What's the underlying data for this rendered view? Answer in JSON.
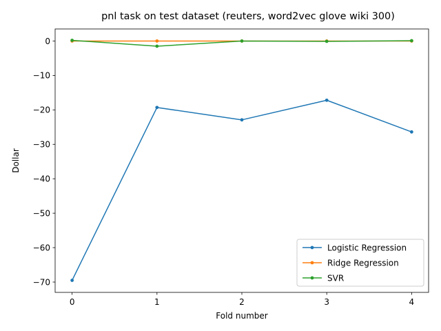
{
  "chart_data": {
    "type": "line",
    "title": "pnl task on test dataset (reuters, word2vec glove wiki 300)",
    "xlabel": "Fold number",
    "ylabel": "Dollar",
    "x": [
      0,
      1,
      2,
      3,
      4
    ],
    "xlim": [
      -0.2,
      4.2
    ],
    "ylim": [
      -73,
      3.5
    ],
    "xticks": [
      0,
      1,
      2,
      3,
      4
    ],
    "yticks": [
      0,
      -10,
      -20,
      -30,
      -40,
      -50,
      -60,
      -70
    ],
    "ytick_labels": [
      "0",
      "−10",
      "−20",
      "−30",
      "−40",
      "−50",
      "−60",
      "−70"
    ],
    "grid": false,
    "legend_position": "lower-right",
    "series": [
      {
        "name": "Logistic Regression",
        "color": "#1f77b4",
        "values": [
          -69.5,
          -19.3,
          -22.9,
          -17.2,
          -26.4
        ]
      },
      {
        "name": "Ridge Regression",
        "color": "#ff7f0e",
        "values": [
          0.0,
          0.0,
          0.0,
          0.0,
          0.0
        ]
      },
      {
        "name": "SVR",
        "color": "#2ca02c",
        "values": [
          0.2,
          -1.5,
          0.0,
          -0.1,
          0.1
        ]
      }
    ]
  }
}
